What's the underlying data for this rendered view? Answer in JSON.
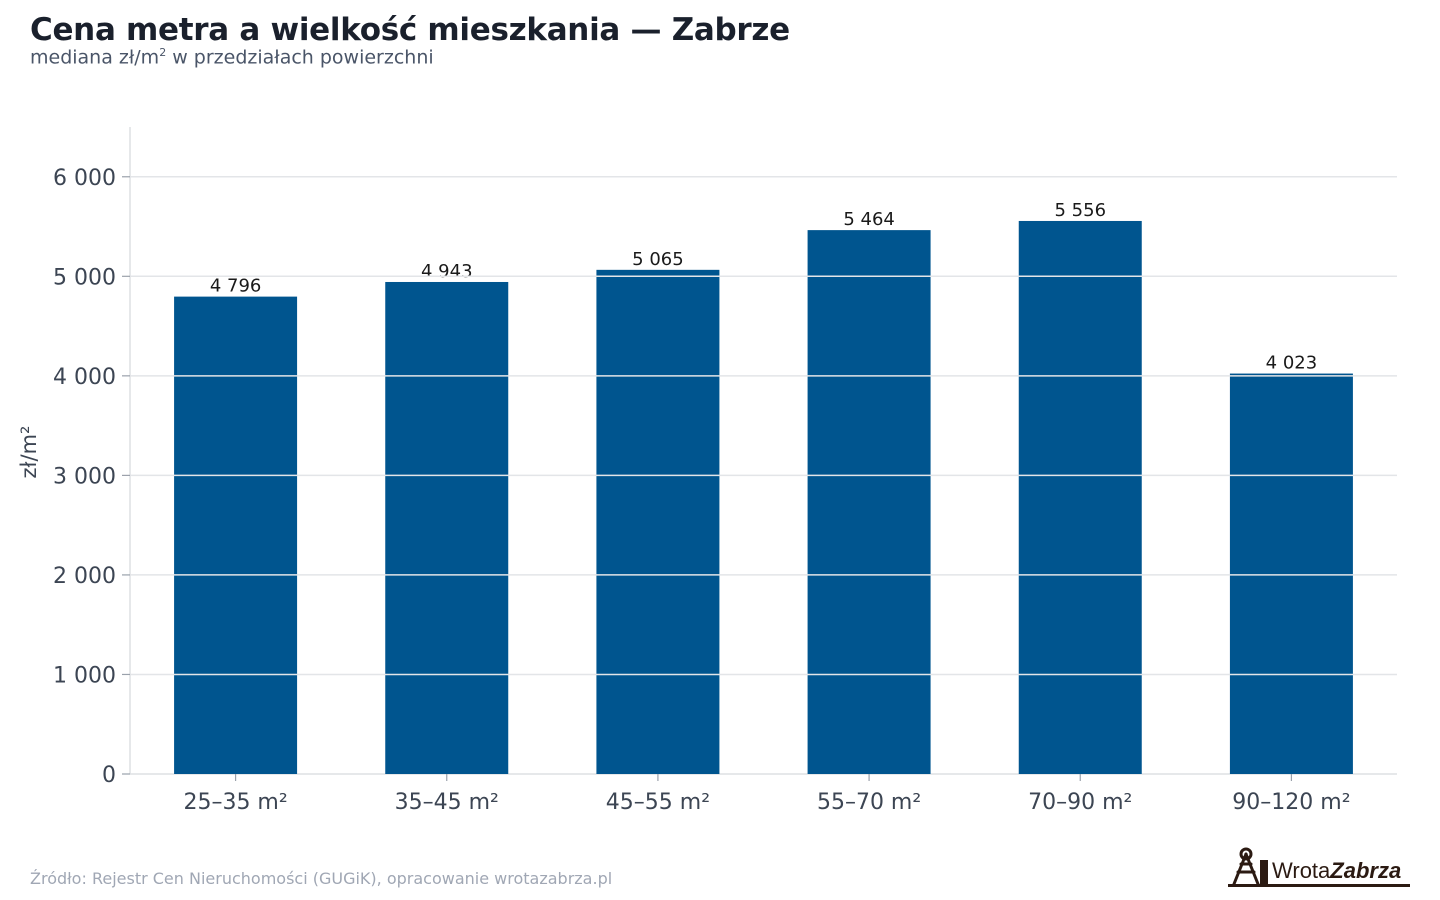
{
  "header": {
    "title": "Cena metra a wielkość mieszkania — Zabrze",
    "subtitle": "mediana zł/m² w przedziałach powierzchni"
  },
  "footer": {
    "source": "Źródło: Rejestr Cen Nieruchomości (GUGiK), opracowanie wrotazabrza.pl",
    "logo_text_regular": "Wrota",
    "logo_text_bold": "Zabrza"
  },
  "colors": {
    "bar": "#00558f",
    "grid": "#e3e5e8",
    "axis_text": "#3c4553",
    "label_text": "#1a1a1a"
  },
  "chart_data": {
    "type": "bar",
    "categories": [
      "25–35 m²",
      "35–45 m²",
      "45–55 m²",
      "55–70 m²",
      "70–90 m²",
      "90–120 m²"
    ],
    "values": [
      4796,
      4943,
      5065,
      5464,
      5556,
      4023
    ],
    "value_labels": [
      "4 796",
      "4 943",
      "5 065",
      "5 464",
      "5 556",
      "4 023"
    ],
    "ylabel": "zł/m²",
    "xlabel": "",
    "ylim": [
      0,
      6500
    ],
    "yticks": [
      0,
      1000,
      2000,
      3000,
      4000,
      5000,
      6000
    ],
    "ytick_labels": [
      "0",
      "1 000",
      "2 000",
      "3 000",
      "4 000",
      "5 000",
      "6 000"
    ],
    "grid": true,
    "legend": "none"
  }
}
